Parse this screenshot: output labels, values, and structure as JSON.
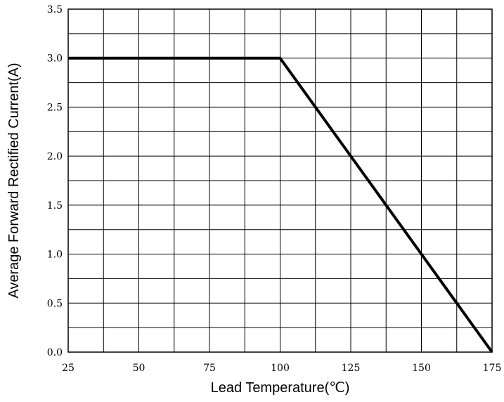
{
  "chart_data": {
    "type": "line",
    "xlabel": "Lead Temperature(℃)",
    "ylabel": "Average Forward Rectified Current(A)",
    "xlim": [
      25,
      175
    ],
    "ylim": [
      0.0,
      3.5
    ],
    "x_ticks": [
      "25",
      "50",
      "75",
      "100",
      "125",
      "150",
      "175"
    ],
    "y_ticks": [
      "0.0",
      "0.5",
      "1.0",
      "1.5",
      "2.0",
      "2.5",
      "3.0",
      "3.5"
    ],
    "grid": true,
    "series": [
      {
        "color": "#000000",
        "points": [
          {
            "x": 25,
            "y": 3.0
          },
          {
            "x": 100,
            "y": 3.0
          },
          {
            "x": 175,
            "y": 0.0
          }
        ]
      }
    ]
  }
}
